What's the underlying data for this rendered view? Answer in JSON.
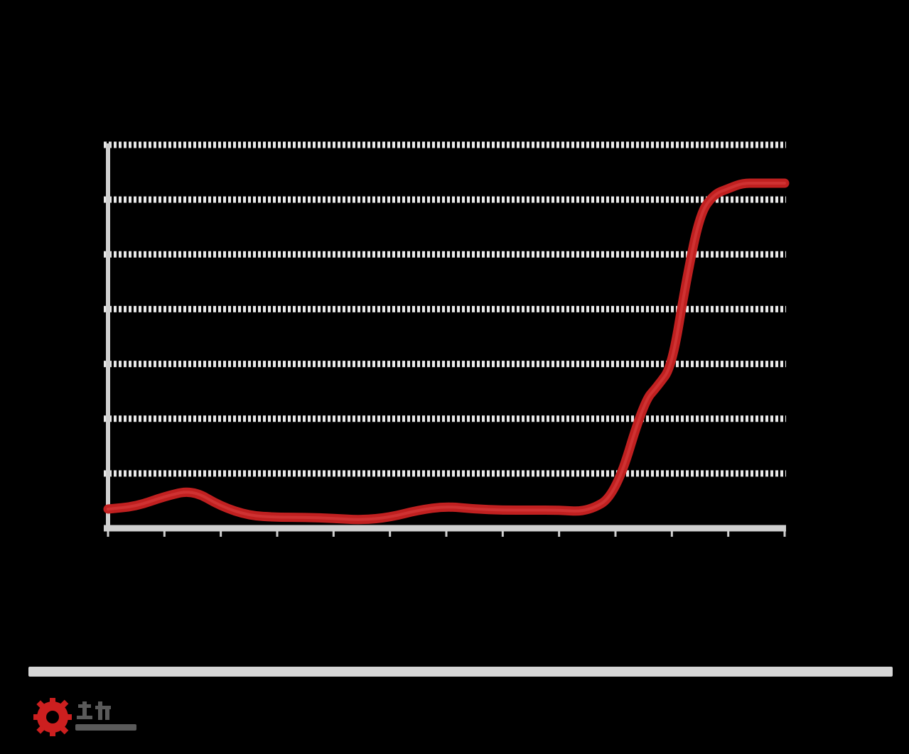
{
  "colors": {
    "background": "#000000",
    "line": "#c02020",
    "line_highlight": "#d94040",
    "grid": "#e8e8e8",
    "axis": "#d0d0d0",
    "footer_bar": "#d6d6d6",
    "logo_red": "#cc1f1f",
    "logo_grey": "#5a5a5a"
  },
  "logo": {
    "icon": "gear-icon"
  },
  "chart_data": {
    "type": "line",
    "title": "",
    "xlabel": "",
    "ylabel": "",
    "x": [
      0,
      0.5,
      1,
      1.5,
      2,
      2.5,
      3,
      3.5,
      4,
      4.5,
      5,
      5.5,
      6,
      6.5,
      7,
      7.5,
      8,
      8.5,
      9,
      9.5,
      9.75,
      10,
      10.25,
      10.5,
      10.75,
      11,
      11.25,
      11.5,
      11.75,
      12
    ],
    "series": [
      {
        "values": [
          0.35,
          0.4,
          0.58,
          0.7,
          0.4,
          0.23,
          0.2,
          0.2,
          0.18,
          0.15,
          0.2,
          0.33,
          0.4,
          0.35,
          0.33,
          0.33,
          0.33,
          0.3,
          0.6,
          2.3,
          2.6,
          2.95,
          4.5,
          5.75,
          6.1,
          6.2,
          6.3,
          6.3,
          6.3,
          6.3
        ]
      }
    ],
    "xlim": [
      0,
      12
    ],
    "ylim": [
      0,
      7
    ],
    "x_ticks": 13,
    "y_gridlines": 7,
    "grid": true,
    "legend": "none"
  }
}
